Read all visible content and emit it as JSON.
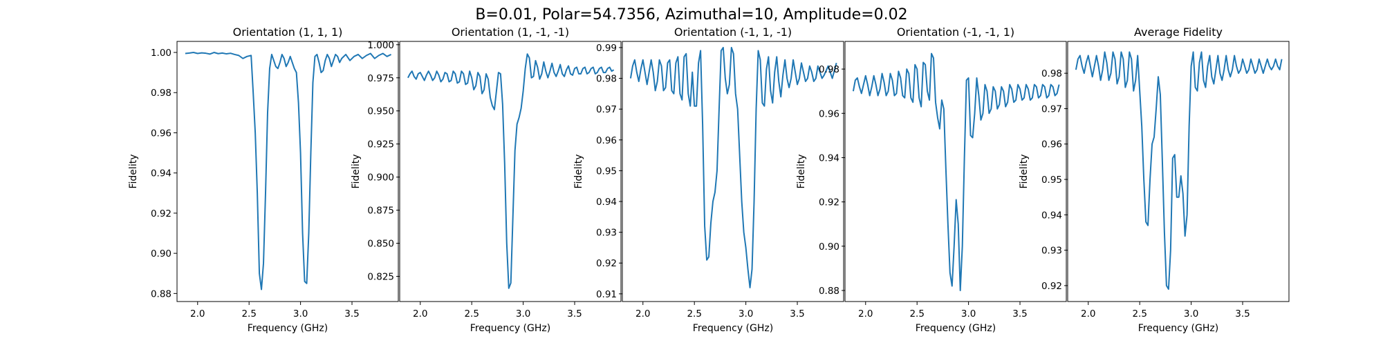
{
  "figure": {
    "title": "B=0.01, Polar=54.7356, Azimuthal=10, Amplitude=0.02"
  },
  "style": {
    "line_color": "#1f77b4",
    "axis_color": "#000000"
  },
  "chart_data": [
    {
      "type": "line",
      "title": "Orientation (1, 1, 1)",
      "xlabel": "Frequency (GHz)",
      "ylabel": "Fidelity",
      "xlim": [
        1.8,
        3.95
      ],
      "ylim": [
        0.876,
        1.0055
      ],
      "xticks": [
        "2.0",
        "2.5",
        "3.0",
        "3.5"
      ],
      "yticks": [
        "0.88",
        "0.90",
        "0.92",
        "0.94",
        "0.96",
        "0.98",
        "1.00"
      ],
      "grid": false,
      "x": [
        1.88,
        1.92,
        1.96,
        2.0,
        2.04,
        2.08,
        2.12,
        2.16,
        2.2,
        2.24,
        2.28,
        2.32,
        2.36,
        2.4,
        2.44,
        2.48,
        2.52,
        2.54,
        2.56,
        2.58,
        2.6,
        2.62,
        2.64,
        2.66,
        2.68,
        2.7,
        2.72,
        2.74,
        2.76,
        2.78,
        2.8,
        2.82,
        2.84,
        2.86,
        2.88,
        2.9,
        2.92,
        2.94,
        2.96,
        2.98,
        3.0,
        3.02,
        3.04,
        3.06,
        3.08,
        3.1,
        3.12,
        3.14,
        3.16,
        3.18,
        3.2,
        3.22,
        3.24,
        3.26,
        3.28,
        3.3,
        3.32,
        3.34,
        3.36,
        3.38,
        3.4,
        3.44,
        3.48,
        3.52,
        3.56,
        3.6,
        3.64,
        3.68,
        3.72,
        3.76,
        3.8,
        3.84,
        3.88
      ],
      "values": [
        0.9995,
        0.9997,
        1.0,
        0.9995,
        0.9998,
        0.9996,
        0.9992,
        1.0,
        0.9994,
        0.9997,
        0.9993,
        0.9996,
        0.999,
        0.9985,
        0.997,
        0.998,
        0.9985,
        0.98,
        0.96,
        0.93,
        0.89,
        0.882,
        0.895,
        0.93,
        0.97,
        0.992,
        0.999,
        0.996,
        0.993,
        0.992,
        0.995,
        0.999,
        0.997,
        0.993,
        0.995,
        0.998,
        0.995,
        0.992,
        0.99,
        0.975,
        0.95,
        0.91,
        0.886,
        0.885,
        0.91,
        0.95,
        0.985,
        0.998,
        0.999,
        0.995,
        0.99,
        0.991,
        0.996,
        0.999,
        0.997,
        0.993,
        0.996,
        0.999,
        0.998,
        0.995,
        0.997,
        0.999,
        0.996,
        0.998,
        0.999,
        0.997,
        0.9985,
        0.9995,
        0.997,
        0.9985,
        0.9995,
        0.998,
        0.999
      ]
    },
    {
      "type": "line",
      "title": "Orientation (1, -1, -1)",
      "xlabel": "Frequency (GHz)",
      "ylabel": "Fidelity",
      "xlim": [
        1.8,
        3.95
      ],
      "ylim": [
        0.806,
        1.0025
      ],
      "xticks": [
        "2.0",
        "2.5",
        "3.0",
        "3.5"
      ],
      "yticks": [
        "0.825",
        "0.850",
        "0.875",
        "0.900",
        "0.925",
        "0.950",
        "0.975",
        "1.000"
      ],
      "grid": false,
      "x": [
        1.88,
        1.9,
        1.92,
        1.94,
        1.96,
        1.98,
        2.0,
        2.02,
        2.04,
        2.06,
        2.08,
        2.1,
        2.12,
        2.14,
        2.16,
        2.18,
        2.2,
        2.22,
        2.24,
        2.26,
        2.28,
        2.3,
        2.32,
        2.34,
        2.36,
        2.38,
        2.4,
        2.42,
        2.44,
        2.46,
        2.48,
        2.5,
        2.52,
        2.54,
        2.56,
        2.58,
        2.6,
        2.62,
        2.64,
        2.66,
        2.68,
        2.7,
        2.72,
        2.74,
        2.76,
        2.78,
        2.8,
        2.82,
        2.84,
        2.86,
        2.88,
        2.9,
        2.92,
        2.94,
        2.96,
        2.98,
        3.0,
        3.02,
        3.04,
        3.06,
        3.08,
        3.1,
        3.12,
        3.14,
        3.16,
        3.18,
        3.2,
        3.22,
        3.24,
        3.26,
        3.28,
        3.3,
        3.32,
        3.34,
        3.36,
        3.38,
        3.4,
        3.42,
        3.44,
        3.46,
        3.48,
        3.5,
        3.52,
        3.54,
        3.56,
        3.58,
        3.6,
        3.62,
        3.64,
        3.66,
        3.68,
        3.7,
        3.72,
        3.74,
        3.76,
        3.78,
        3.8,
        3.82,
        3.84,
        3.86,
        3.88
      ],
      "values": [
        0.975,
        0.978,
        0.98,
        0.976,
        0.974,
        0.978,
        0.979,
        0.976,
        0.973,
        0.977,
        0.98,
        0.977,
        0.973,
        0.975,
        0.98,
        0.977,
        0.972,
        0.974,
        0.979,
        0.978,
        0.972,
        0.973,
        0.98,
        0.978,
        0.971,
        0.972,
        0.98,
        0.978,
        0.97,
        0.971,
        0.98,
        0.975,
        0.966,
        0.969,
        0.979,
        0.976,
        0.963,
        0.966,
        0.978,
        0.974,
        0.96,
        0.954,
        0.951,
        0.965,
        0.979,
        0.978,
        0.955,
        0.91,
        0.85,
        0.816,
        0.82,
        0.87,
        0.92,
        0.94,
        0.945,
        0.952,
        0.965,
        0.982,
        0.993,
        0.99,
        0.975,
        0.976,
        0.988,
        0.983,
        0.974,
        0.978,
        0.987,
        0.98,
        0.975,
        0.98,
        0.986,
        0.979,
        0.976,
        0.98,
        0.985,
        0.978,
        0.976,
        0.981,
        0.984,
        0.978,
        0.977,
        0.982,
        0.983,
        0.978,
        0.978,
        0.982,
        0.983,
        0.978,
        0.979,
        0.982,
        0.983,
        0.978,
        0.979,
        0.982,
        0.983,
        0.979,
        0.979,
        0.982,
        0.983,
        0.98,
        0.981
      ]
    },
    {
      "type": "line",
      "title": "Orientation (-1, 1, -1)",
      "xlabel": "Frequency (GHz)",
      "ylabel": "Fidelity",
      "xlim": [
        1.8,
        3.95
      ],
      "ylim": [
        0.9075,
        0.992
      ],
      "xticks": [
        "2.0",
        "2.5",
        "3.0",
        "3.5"
      ],
      "yticks": [
        "0.91",
        "0.92",
        "0.93",
        "0.94",
        "0.95",
        "0.96",
        "0.97",
        "0.98",
        "0.99"
      ],
      "grid": false,
      "x": [
        1.88,
        1.9,
        1.92,
        1.94,
        1.96,
        1.98,
        2.0,
        2.02,
        2.04,
        2.06,
        2.08,
        2.1,
        2.12,
        2.14,
        2.16,
        2.18,
        2.2,
        2.22,
        2.24,
        2.26,
        2.28,
        2.3,
        2.32,
        2.34,
        2.36,
        2.38,
        2.4,
        2.42,
        2.44,
        2.46,
        2.48,
        2.5,
        2.52,
        2.54,
        2.56,
        2.58,
        2.6,
        2.62,
        2.64,
        2.66,
        2.68,
        2.7,
        2.72,
        2.74,
        2.76,
        2.78,
        2.8,
        2.82,
        2.84,
        2.86,
        2.88,
        2.9,
        2.92,
        2.94,
        2.96,
        2.98,
        3.0,
        3.02,
        3.04,
        3.06,
        3.08,
        3.1,
        3.12,
        3.14,
        3.16,
        3.18,
        3.2,
        3.22,
        3.24,
        3.26,
        3.28,
        3.3,
        3.32,
        3.34,
        3.36,
        3.38,
        3.4,
        3.42,
        3.44,
        3.46,
        3.48,
        3.5,
        3.52,
        3.54,
        3.56,
        3.58,
        3.6,
        3.62,
        3.64,
        3.66,
        3.68,
        3.7,
        3.72,
        3.74,
        3.76,
        3.8,
        3.84,
        3.88
      ],
      "values": [
        0.98,
        0.984,
        0.986,
        0.982,
        0.979,
        0.983,
        0.986,
        0.982,
        0.978,
        0.982,
        0.986,
        0.982,
        0.976,
        0.979,
        0.986,
        0.984,
        0.976,
        0.977,
        0.985,
        0.986,
        0.976,
        0.975,
        0.985,
        0.987,
        0.975,
        0.973,
        0.987,
        0.988,
        0.975,
        0.971,
        0.982,
        0.971,
        0.971,
        0.985,
        0.989,
        0.965,
        0.932,
        0.921,
        0.922,
        0.933,
        0.94,
        0.943,
        0.95,
        0.97,
        0.989,
        0.99,
        0.98,
        0.975,
        0.978,
        0.99,
        0.988,
        0.975,
        0.97,
        0.955,
        0.94,
        0.93,
        0.925,
        0.918,
        0.912,
        0.918,
        0.94,
        0.97,
        0.989,
        0.986,
        0.972,
        0.971,
        0.983,
        0.987,
        0.976,
        0.972,
        0.982,
        0.987,
        0.979,
        0.974,
        0.981,
        0.986,
        0.98,
        0.977,
        0.98,
        0.986,
        0.982,
        0.978,
        0.98,
        0.985,
        0.982,
        0.979,
        0.98,
        0.984,
        0.982,
        0.979,
        0.98,
        0.984,
        0.982,
        0.98,
        0.981,
        0.984,
        0.98,
        0.985
      ]
    },
    {
      "type": "line",
      "title": "Orientation (-1, -1, 1)",
      "xlabel": "Frequency (GHz)",
      "ylabel": "Fidelity",
      "xlim": [
        1.8,
        3.95
      ],
      "ylim": [
        0.875,
        0.9925
      ],
      "xticks": [
        "2.0",
        "2.5",
        "3.0",
        "3.5"
      ],
      "yticks": [
        "0.88",
        "0.90",
        "0.92",
        "0.94",
        "0.96",
        "0.98"
      ],
      "grid": false,
      "x": [
        1.88,
        1.9,
        1.92,
        1.94,
        1.96,
        1.98,
        2.0,
        2.02,
        2.04,
        2.06,
        2.08,
        2.1,
        2.12,
        2.14,
        2.16,
        2.18,
        2.2,
        2.22,
        2.24,
        2.26,
        2.28,
        2.3,
        2.32,
        2.34,
        2.36,
        2.38,
        2.4,
        2.42,
        2.44,
        2.46,
        2.48,
        2.5,
        2.52,
        2.54,
        2.56,
        2.58,
        2.6,
        2.62,
        2.64,
        2.66,
        2.68,
        2.7,
        2.72,
        2.74,
        2.76,
        2.78,
        2.8,
        2.82,
        2.84,
        2.86,
        2.88,
        2.9,
        2.92,
        2.94,
        2.96,
        2.98,
        3.0,
        3.02,
        3.04,
        3.06,
        3.08,
        3.1,
        3.12,
        3.14,
        3.16,
        3.18,
        3.2,
        3.22,
        3.24,
        3.26,
        3.28,
        3.3,
        3.32,
        3.34,
        3.36,
        3.38,
        3.4,
        3.42,
        3.44,
        3.46,
        3.48,
        3.5,
        3.52,
        3.54,
        3.56,
        3.58,
        3.6,
        3.62,
        3.64,
        3.66,
        3.68,
        3.7,
        3.72,
        3.74,
        3.76,
        3.78,
        3.8,
        3.82,
        3.84,
        3.86,
        3.88
      ],
      "values": [
        0.97,
        0.975,
        0.976,
        0.972,
        0.969,
        0.973,
        0.977,
        0.973,
        0.968,
        0.972,
        0.977,
        0.973,
        0.968,
        0.971,
        0.978,
        0.974,
        0.968,
        0.97,
        0.978,
        0.975,
        0.968,
        0.969,
        0.979,
        0.976,
        0.968,
        0.967,
        0.98,
        0.978,
        0.967,
        0.965,
        0.982,
        0.98,
        0.967,
        0.963,
        0.983,
        0.982,
        0.97,
        0.966,
        0.987,
        0.985,
        0.965,
        0.958,
        0.953,
        0.966,
        0.962,
        0.935,
        0.91,
        0.888,
        0.882,
        0.9,
        0.921,
        0.91,
        0.88,
        0.9,
        0.94,
        0.975,
        0.976,
        0.95,
        0.949,
        0.96,
        0.976,
        0.968,
        0.957,
        0.96,
        0.973,
        0.97,
        0.96,
        0.962,
        0.972,
        0.97,
        0.962,
        0.964,
        0.972,
        0.97,
        0.963,
        0.965,
        0.973,
        0.971,
        0.965,
        0.966,
        0.973,
        0.971,
        0.966,
        0.967,
        0.973,
        0.971,
        0.966,
        0.967,
        0.973,
        0.972,
        0.967,
        0.968,
        0.973,
        0.972,
        0.967,
        0.968,
        0.973,
        0.972,
        0.968,
        0.969,
        0.973
      ]
    },
    {
      "type": "line",
      "title": "Average Fidelity",
      "xlabel": "Frequency (GHz)",
      "ylabel": "Fidelity",
      "xlim": [
        1.8,
        3.95
      ],
      "ylim": [
        0.9155,
        0.989
      ],
      "xticks": [
        "2.0",
        "2.5",
        "3.0",
        "3.5"
      ],
      "yticks": [
        "0.92",
        "0.93",
        "0.94",
        "0.95",
        "0.96",
        "0.97",
        "0.98"
      ],
      "grid": false,
      "x": [
        1.88,
        1.9,
        1.92,
        1.94,
        1.96,
        1.98,
        2.0,
        2.02,
        2.04,
        2.06,
        2.08,
        2.1,
        2.12,
        2.14,
        2.16,
        2.18,
        2.2,
        2.22,
        2.24,
        2.26,
        2.28,
        2.3,
        2.32,
        2.34,
        2.36,
        2.38,
        2.4,
        2.42,
        2.44,
        2.46,
        2.48,
        2.5,
        2.52,
        2.54,
        2.56,
        2.58,
        2.6,
        2.62,
        2.64,
        2.66,
        2.68,
        2.7,
        2.72,
        2.74,
        2.76,
        2.78,
        2.8,
        2.82,
        2.84,
        2.86,
        2.88,
        2.9,
        2.92,
        2.94,
        2.96,
        2.98,
        3.0,
        3.02,
        3.04,
        3.06,
        3.08,
        3.1,
        3.12,
        3.14,
        3.16,
        3.18,
        3.2,
        3.22,
        3.24,
        3.26,
        3.28,
        3.3,
        3.32,
        3.34,
        3.36,
        3.38,
        3.4,
        3.42,
        3.44,
        3.46,
        3.48,
        3.5,
        3.52,
        3.54,
        3.56,
        3.58,
        3.6,
        3.62,
        3.64,
        3.66,
        3.68,
        3.7,
        3.72,
        3.74,
        3.76,
        3.78,
        3.8,
        3.82,
        3.84,
        3.86,
        3.88
      ],
      "values": [
        0.981,
        0.984,
        0.985,
        0.982,
        0.98,
        0.983,
        0.985,
        0.982,
        0.979,
        0.982,
        0.985,
        0.982,
        0.978,
        0.981,
        0.986,
        0.983,
        0.978,
        0.98,
        0.986,
        0.984,
        0.977,
        0.979,
        0.986,
        0.984,
        0.976,
        0.978,
        0.986,
        0.984,
        0.975,
        0.978,
        0.985,
        0.975,
        0.965,
        0.95,
        0.938,
        0.937,
        0.95,
        0.96,
        0.962,
        0.97,
        0.979,
        0.974,
        0.955,
        0.935,
        0.92,
        0.919,
        0.93,
        0.956,
        0.957,
        0.945,
        0.945,
        0.951,
        0.946,
        0.934,
        0.94,
        0.965,
        0.982,
        0.986,
        0.976,
        0.975,
        0.983,
        0.986,
        0.978,
        0.976,
        0.982,
        0.985,
        0.979,
        0.977,
        0.981,
        0.985,
        0.98,
        0.978,
        0.981,
        0.985,
        0.981,
        0.979,
        0.981,
        0.985,
        0.982,
        0.98,
        0.981,
        0.984,
        0.982,
        0.98,
        0.981,
        0.984,
        0.982,
        0.98,
        0.981,
        0.984,
        0.982,
        0.98,
        0.982,
        0.984,
        0.982,
        0.981,
        0.982,
        0.984,
        0.982,
        0.981,
        0.984
      ]
    }
  ]
}
